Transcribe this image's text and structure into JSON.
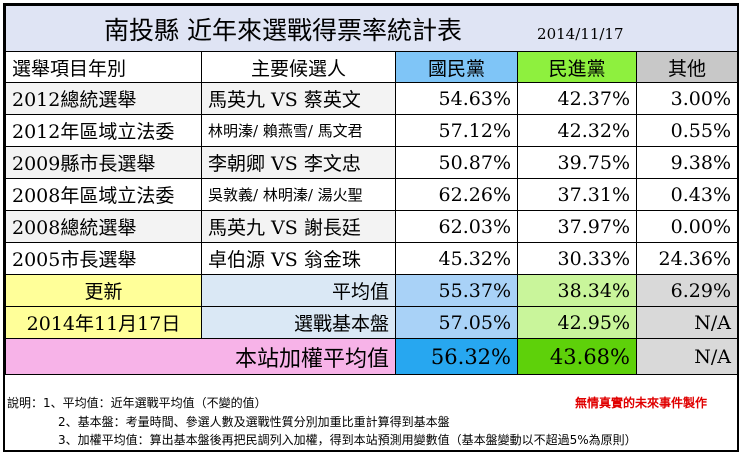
{
  "header": {
    "title": "南投縣 近年來選戰得票率統計表",
    "date": "2014/11/17"
  },
  "columns": {
    "category": "選舉項目年別",
    "candidates": "主要候選人",
    "kmt": "國民黨",
    "dpp": "民進黨",
    "other": "其他"
  },
  "colors": {
    "kmt": "#7fc5f7",
    "dpp": "#8ef03e",
    "other": "#c8c8c8",
    "weighted": "#f7b3e8",
    "update": "#ffff99",
    "tagline": "#e00000"
  },
  "rows": [
    {
      "category": "2012總統選舉",
      "candidates": "馬英九 VS 蔡英文",
      "kmt": "54.63%",
      "dpp": "42.37%",
      "other": "3.00%"
    },
    {
      "category": "2012年區域立法委",
      "candidates": "林明溱/ 賴燕雪/ 馬文君",
      "kmt": "57.12%",
      "dpp": "42.32%",
      "other": "0.55%"
    },
    {
      "category": "2009縣市長選舉",
      "candidates": "李朝卿 VS 李文忠",
      "kmt": "50.87%",
      "dpp": "39.75%",
      "other": "9.38%"
    },
    {
      "category": "2008年區域立法委",
      "candidates": "吳敦義/ 林明溱/ 湯火聖",
      "kmt": "62.26%",
      "dpp": "37.31%",
      "other": "0.43%"
    },
    {
      "category": "2008總統選舉",
      "candidates": "馬英九 VS 謝長廷",
      "kmt": "62.03%",
      "dpp": "37.97%",
      "other": "0.00%"
    },
    {
      "category": "2005市長選舉",
      "candidates": "卓伯源 VS 翁金珠",
      "kmt": "45.32%",
      "dpp": "30.33%",
      "other": "24.36%"
    }
  ],
  "update": {
    "label": "更新",
    "date": "2014年11月17日"
  },
  "average": {
    "label": "平均值",
    "kmt": "55.37%",
    "dpp": "38.34%",
    "other": "6.29%"
  },
  "base": {
    "label": "選戰基本盤",
    "kmt": "57.05%",
    "dpp": "42.95%",
    "other": "N/A"
  },
  "weighted": {
    "label": "本站加權平均值",
    "kmt": "56.32%",
    "dpp": "43.68%",
    "other": "N/A"
  },
  "notes": {
    "line1": "說明：1、平均值：近年選戰平均值（不變的值）",
    "line2": "2、基本盤：考量時間、參選人數及選戰性質分別加重比重計算得到基本盤",
    "line3": "3、加權平均值：算出基本盤後再把民調列入加權，得到本站預測用變數值（基本盤變動以不超過5%為原則）",
    "tagline": "無情真實的未來事件製作"
  }
}
